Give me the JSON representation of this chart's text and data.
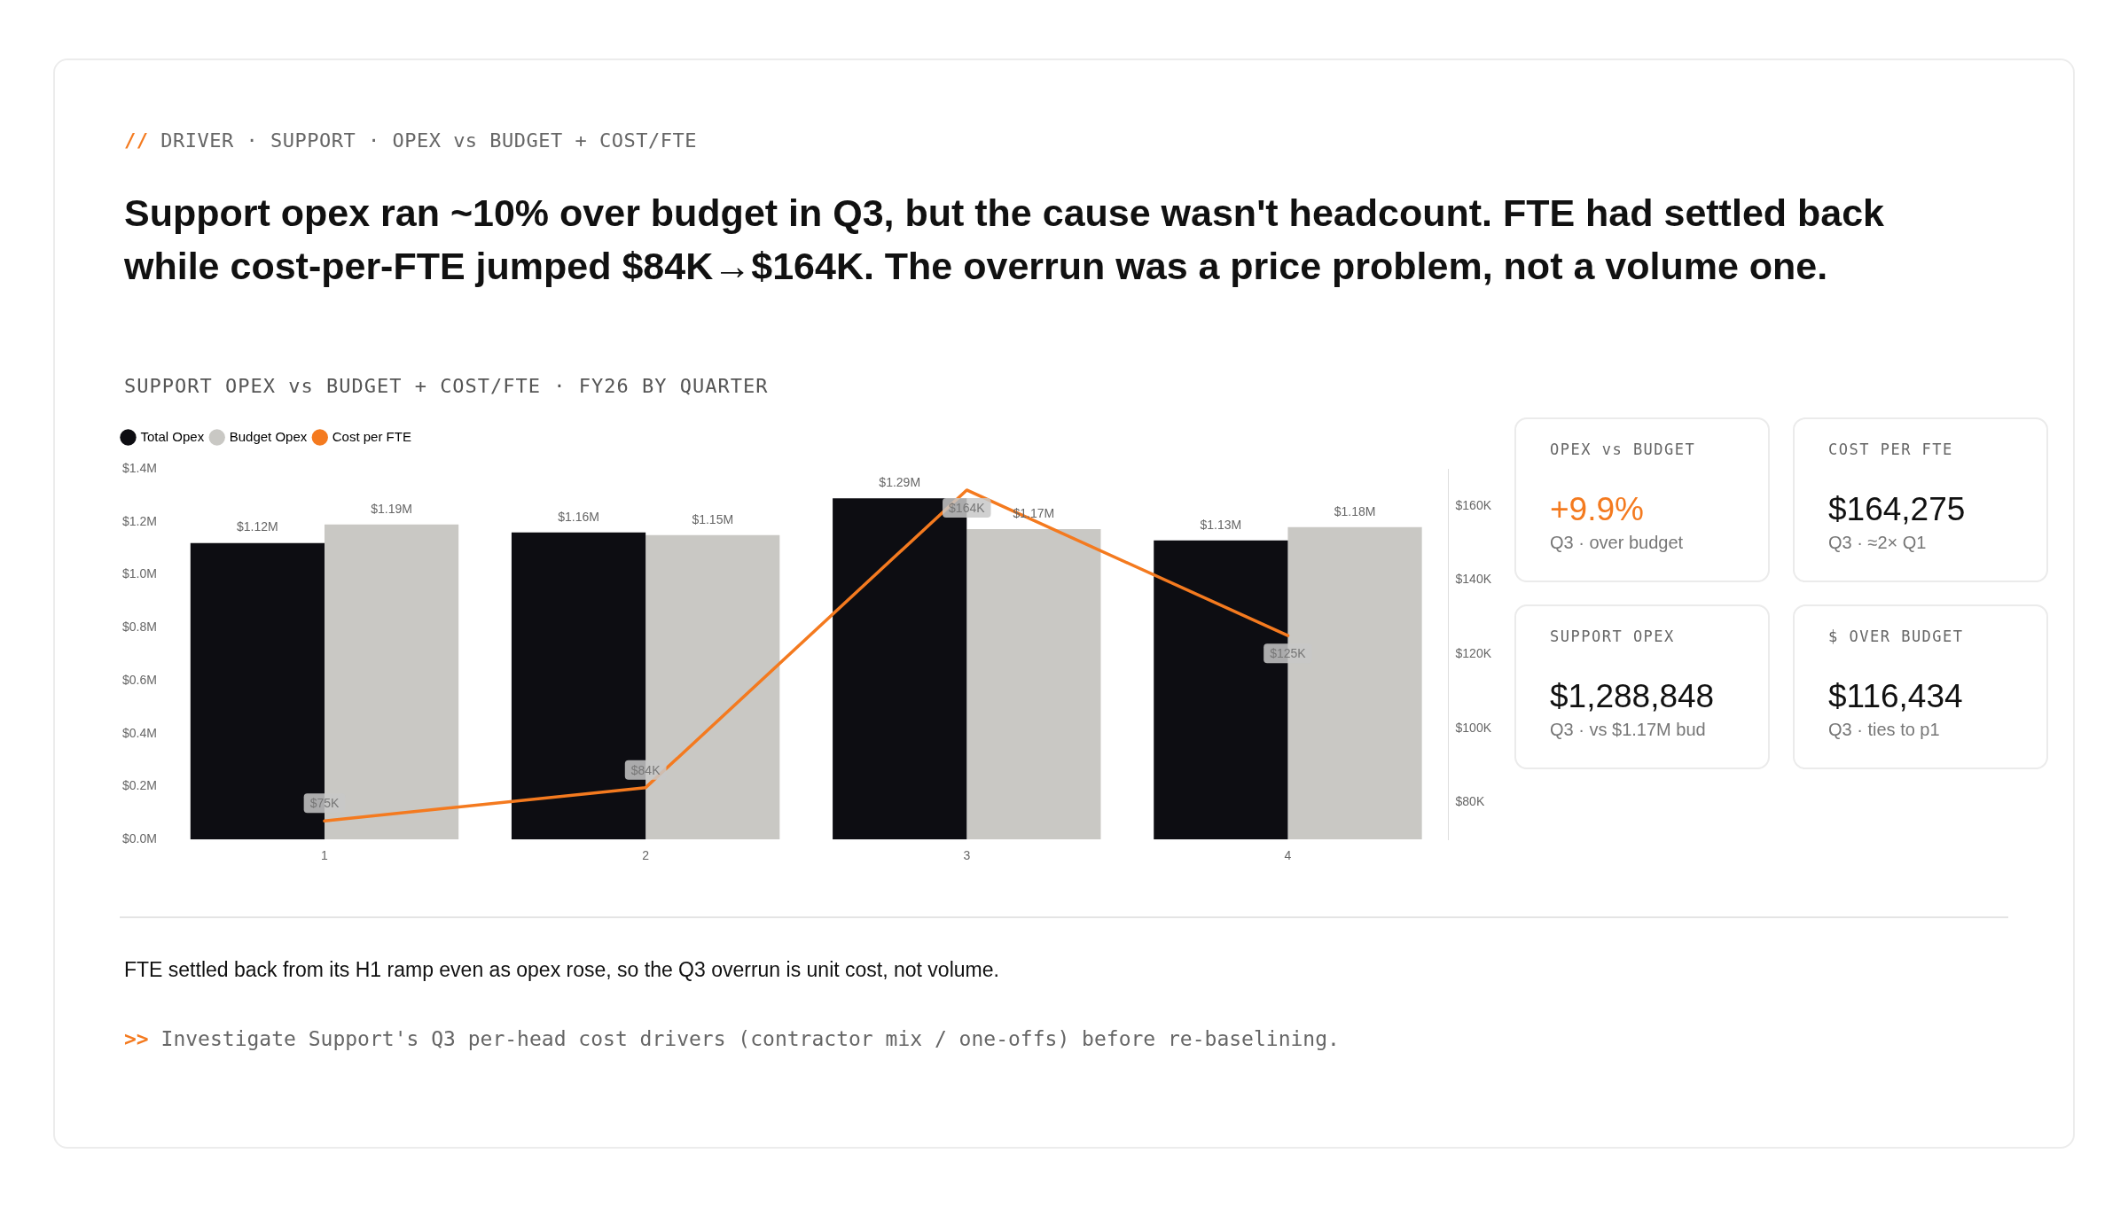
{
  "chart_data": [
    {
      "type": "bar",
      "title": "Support opex ran ~10% over budget in Q3, but the cause wasn't headcount. FTE had settled back while cost-per-FTE jumped $84K→$164K. The overrun was a price problem, not a volume one.",
      "subtitle": "SUPPORT OPEX vs BUDGET + COST/FTE · FY26 BY QUARTER",
      "annotations": [
        "// DRIVER · SUPPORT · OPEX vs BUDGET + COST/FTE",
        "FTE settled back from its H1 ramp even as opex rose, so the Q3 overrun is unit cost, not volume.",
        ">> Investigate Support's Q3 per-head cost drivers (contractor mix / one-offs) before re-baselining."
      ],
      "categories": [
        "1",
        "2",
        "3",
        "4"
      ],
      "series": [
        {
          "name": "Total Opex",
          "color": "#0d0d12",
          "values": [
            1120000,
            1160000,
            1288848,
            1130000
          ],
          "value_labels": [
            "$1.12M",
            "$1.16M",
            "$1.29M",
            "$1.13M"
          ]
        },
        {
          "name": "Budget Opex",
          "color": "#c9c8c4",
          "values": [
            1190000,
            1150000,
            1172414,
            1180000
          ],
          "value_labels": [
            "$1.19M",
            "$1.15M",
            "$1.17M",
            "$1.18M"
          ]
        },
        {
          "name": "Cost per FTE",
          "type": "line",
          "axis": "y2",
          "color": "#f47a1f",
          "values": [
            75000,
            84000,
            164275,
            125000
          ],
          "value_labels": [
            "$75K",
            "$84K",
            "$164K",
            "$125K"
          ]
        }
      ],
      "ylim": [
        0,
        1400000
      ],
      "yticks": [
        {
          "value": 0,
          "label": "$0.0M"
        },
        {
          "value": 200000,
          "label": "$0.2M"
        },
        {
          "value": 400000,
          "label": "$0.4M"
        },
        {
          "value": 600000,
          "label": "$0.6M"
        },
        {
          "value": 800000,
          "label": "$0.8M"
        },
        {
          "value": 1000000,
          "label": "$1.0M"
        },
        {
          "value": 1200000,
          "label": "$1.2M"
        },
        {
          "value": 1400000,
          "label": "$1.4M"
        }
      ],
      "y2lim": [
        70000,
        170000
      ],
      "y2ticks": [
        {
          "value": 80000,
          "label": "$80K"
        },
        {
          "value": 100000,
          "label": "$100K"
        },
        {
          "value": 120000,
          "label": "$120K"
        },
        {
          "value": 140000,
          "label": "$140K"
        },
        {
          "value": 160000,
          "label": "$160K"
        }
      ],
      "legend": "top left"
    },
    {
      "type": "other",
      "categories": [
        "OPEX vs BUDGET",
        "COST PER FTE",
        "SUPPORT OPEX",
        "$ OVER BUDGET"
      ],
      "values": [
        9.9,
        164275,
        1288848,
        116434
      ],
      "value_labels": [
        "+9.9%",
        "$164,275",
        "$1,288,848",
        "$116,434"
      ],
      "colors": [
        "#f47a1f",
        "#111111",
        "#111111",
        "#111111"
      ],
      "annotations": [
        "Q3 · over budget",
        "Q3 · ≈2× Q1",
        "Q3 · vs $1.17M bud",
        "Q3 · ties to p1"
      ]
    }
  ]
}
